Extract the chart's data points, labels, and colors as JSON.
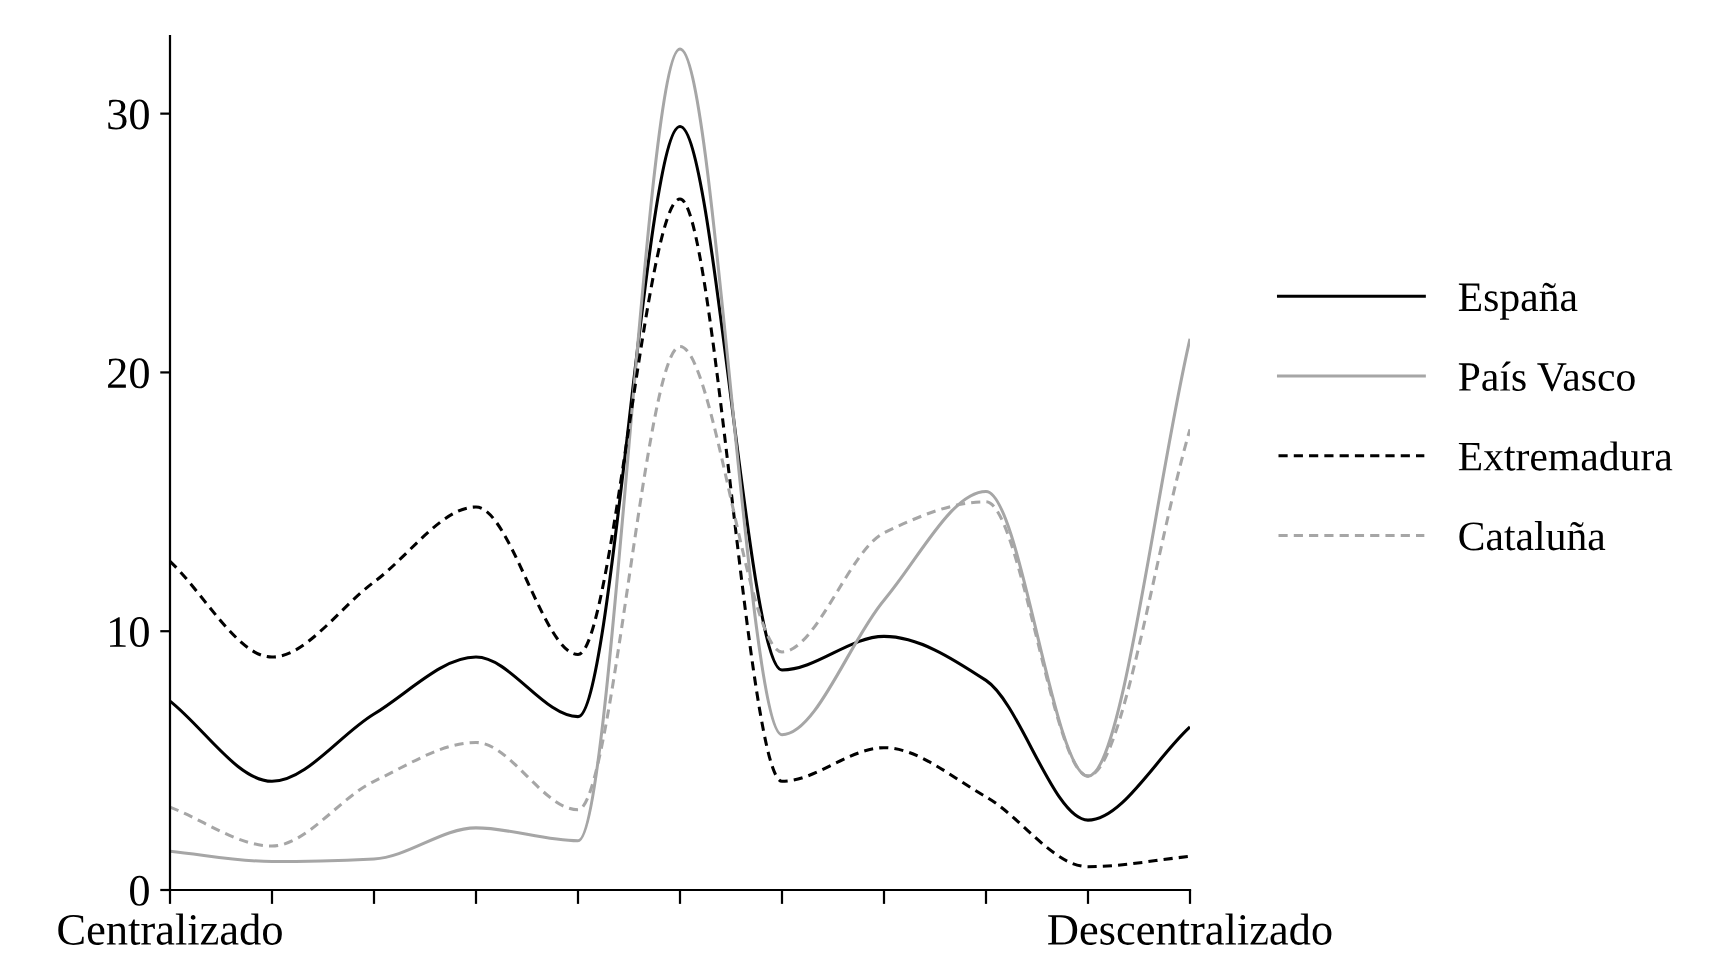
{
  "chart_data": {
    "type": "line",
    "categories": [
      "Centralizado",
      null,
      null,
      null,
      null,
      null,
      null,
      null,
      null,
      null,
      "Descentralizado"
    ],
    "series": [
      {
        "name": "España",
        "color": "#000000",
        "line_style": "solid",
        "values": [
          7.3,
          4.2,
          6.8,
          9.0,
          6.7,
          29.5,
          8.5,
          9.8,
          8.1,
          2.7,
          6.3
        ]
      },
      {
        "name": "País Vasco",
        "color": "#a6a6a6",
        "line_style": "solid",
        "values": [
          1.5,
          1.1,
          1.2,
          2.4,
          1.9,
          32.5,
          6.0,
          11.2,
          15.4,
          4.4,
          21.3
        ]
      },
      {
        "name": "Extremadura",
        "color": "#000000",
        "line_style": "dashed",
        "values": [
          12.7,
          9.0,
          11.9,
          14.8,
          9.1,
          26.7,
          4.2,
          5.5,
          3.6,
          0.9,
          1.3
        ]
      },
      {
        "name": "Cataluña",
        "color": "#a6a6a6",
        "line_style": "dashed",
        "values": [
          3.2,
          1.7,
          4.2,
          5.7,
          3.1,
          21.0,
          9.2,
          13.8,
          15.0,
          4.4,
          17.8
        ]
      }
    ],
    "ylim": [
      0,
      33
    ],
    "yticks": [
      0,
      10,
      20,
      30
    ],
    "grid": false,
    "legend": "right",
    "marker": "none"
  }
}
